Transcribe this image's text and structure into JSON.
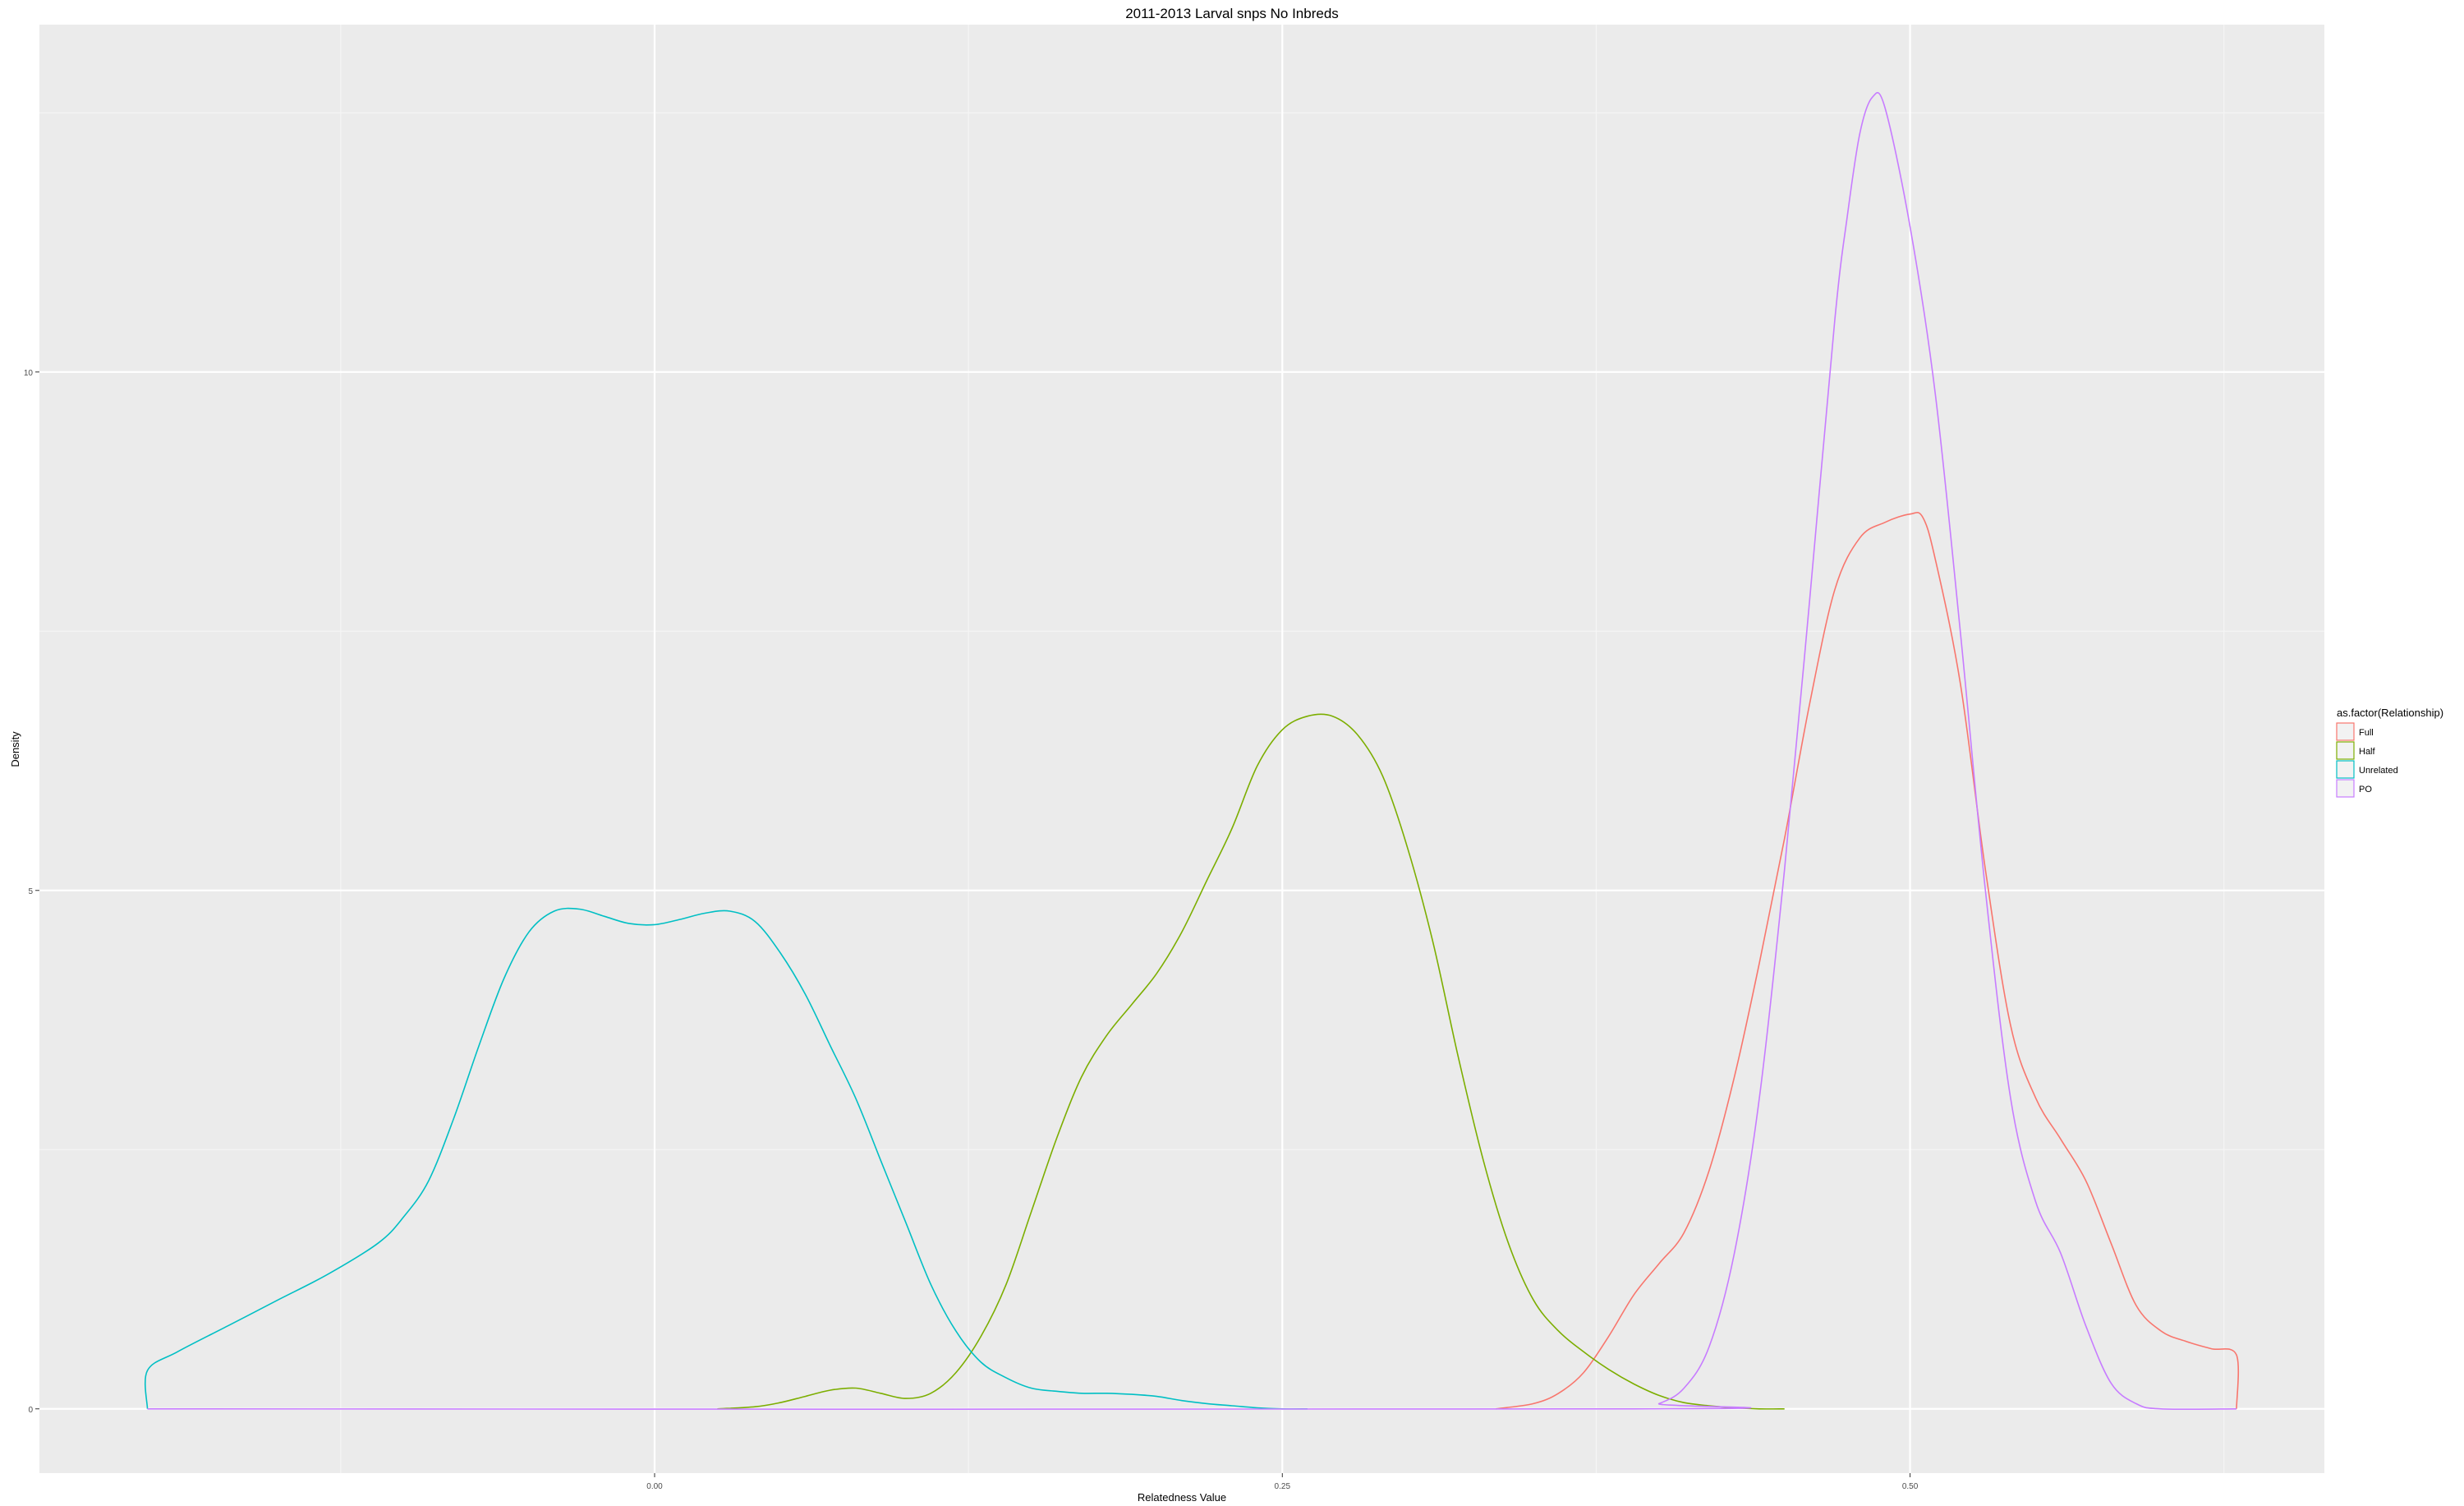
{
  "chart_data": {
    "type": "line",
    "title": "2011-2013 Larval snps No Inbreds",
    "xlabel": "Relatedness Value",
    "ylabel": "Density",
    "xlim": [
      -0.245,
      0.665
    ],
    "ylim": [
      -0.62,
      13.35
    ],
    "x_ticks": [
      0.0,
      0.25,
      0.5
    ],
    "x_tick_labels": [
      "0.00",
      "0.25",
      "0.50"
    ],
    "y_ticks": [
      0,
      5,
      10
    ],
    "y_tick_labels": [
      "0",
      "5",
      "10"
    ],
    "grid": true,
    "legend": {
      "title": "as.factor(Relationship)",
      "position": "right",
      "entries": [
        "Full",
        "Half",
        "Unrelated",
        "PO"
      ]
    },
    "series": [
      {
        "name": "Full",
        "color": "#F8766D",
        "x": [
          0.335,
          0.35,
          0.36,
          0.37,
          0.38,
          0.39,
          0.4,
          0.41,
          0.42,
          0.43,
          0.44,
          0.45,
          0.46,
          0.47,
          0.48,
          0.49,
          0.5,
          0.505,
          0.51,
          0.52,
          0.53,
          0.54,
          0.55,
          0.56,
          0.57,
          0.58,
          0.59,
          0.6,
          0.61,
          0.62,
          0.63,
          0.63
        ],
        "y": [
          0.0,
          0.05,
          0.15,
          0.35,
          0.7,
          1.1,
          1.4,
          1.7,
          2.3,
          3.2,
          4.3,
          5.5,
          6.8,
          7.9,
          8.4,
          8.55,
          8.63,
          8.6,
          8.2,
          7.0,
          5.2,
          3.7,
          3.0,
          2.6,
          2.2,
          1.6,
          1.0,
          0.75,
          0.65,
          0.58,
          0.52,
          0.0
        ]
      },
      {
        "name": "Half",
        "color": "#7CAE00",
        "x": [
          0.025,
          0.04,
          0.05,
          0.06,
          0.07,
          0.08,
          0.09,
          0.1,
          0.11,
          0.12,
          0.13,
          0.14,
          0.15,
          0.16,
          0.17,
          0.18,
          0.19,
          0.2,
          0.21,
          0.22,
          0.23,
          0.24,
          0.25,
          0.26,
          0.27,
          0.28,
          0.29,
          0.3,
          0.31,
          0.32,
          0.33,
          0.34,
          0.35,
          0.36,
          0.37,
          0.38,
          0.39,
          0.4,
          0.41,
          0.42,
          0.43,
          0.44,
          0.45
        ],
        "y": [
          0.0,
          0.02,
          0.06,
          0.12,
          0.18,
          0.2,
          0.15,
          0.1,
          0.15,
          0.35,
          0.7,
          1.2,
          1.9,
          2.6,
          3.2,
          3.6,
          3.9,
          4.2,
          4.6,
          5.1,
          5.6,
          6.2,
          6.55,
          6.68,
          6.68,
          6.5,
          6.1,
          5.4,
          4.5,
          3.4,
          2.4,
          1.6,
          1.05,
          0.75,
          0.55,
          0.38,
          0.24,
          0.13,
          0.06,
          0.03,
          0.01,
          0.0,
          0.0
        ]
      },
      {
        "name": "Unrelated",
        "color": "#00BFC4",
        "x": [
          -0.202,
          -0.202,
          -0.19,
          -0.17,
          -0.15,
          -0.13,
          -0.11,
          -0.1,
          -0.09,
          -0.08,
          -0.07,
          -0.06,
          -0.05,
          -0.04,
          -0.03,
          -0.02,
          -0.01,
          0.0,
          0.01,
          0.02,
          0.03,
          0.04,
          0.05,
          0.06,
          0.07,
          0.08,
          0.09,
          0.1,
          0.11,
          0.12,
          0.13,
          0.14,
          0.15,
          0.16,
          0.17,
          0.18,
          0.19,
          0.2,
          0.21,
          0.22,
          0.23,
          0.24,
          0.25,
          0.26
        ],
        "y": [
          0.0,
          0.37,
          0.55,
          0.8,
          1.05,
          1.3,
          1.6,
          1.85,
          2.2,
          2.8,
          3.5,
          4.15,
          4.6,
          4.8,
          4.82,
          4.75,
          4.68,
          4.67,
          4.72,
          4.78,
          4.8,
          4.7,
          4.4,
          4.0,
          3.5,
          3.0,
          2.4,
          1.8,
          1.2,
          0.75,
          0.45,
          0.3,
          0.2,
          0.17,
          0.15,
          0.15,
          0.14,
          0.12,
          0.08,
          0.05,
          0.03,
          0.01,
          0.0,
          0.0
        ]
      },
      {
        "name": "PO",
        "color": "#C77CFF",
        "x": [
          -0.202,
          0.39,
          0.4,
          0.41,
          0.42,
          0.43,
          0.44,
          0.45,
          0.46,
          0.47,
          0.475,
          0.48,
          0.485,
          0.49,
          0.5,
          0.51,
          0.52,
          0.53,
          0.54,
          0.55,
          0.56,
          0.57,
          0.58,
          0.59,
          0.6,
          0.63
        ],
        "y": [
          0.0,
          0.0,
          0.05,
          0.2,
          0.6,
          1.5,
          3.0,
          5.2,
          7.8,
          10.5,
          11.5,
          12.3,
          12.65,
          12.55,
          11.4,
          9.8,
          7.5,
          5.0,
          3.0,
          2.0,
          1.5,
          0.8,
          0.25,
          0.05,
          0.0,
          0.0
        ]
      }
    ]
  }
}
